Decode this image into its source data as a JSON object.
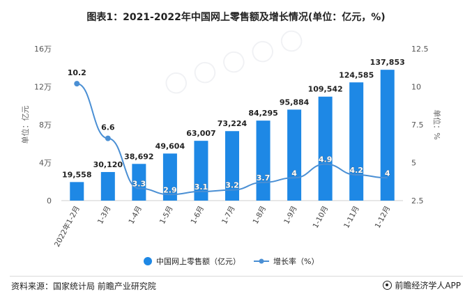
{
  "title": "图表1：2021-2022年中国网上零售额及增长情况(单位：亿元，%)",
  "footer": {
    "source": "资料来源：国家统计局 前瞻产业研究院",
    "brand": "前瞻经济学人APP"
  },
  "colors": {
    "bar": "#1e88e5",
    "line": "#4a8fd4"
  },
  "chart_data": {
    "type": "bar",
    "categories": [
      "2022年1-2月",
      "1-3月",
      "1-4月",
      "1-5月",
      "1-6月",
      "1-7月",
      "1-8月",
      "1-9月",
      "1-10月",
      "1-11月",
      "1-12月"
    ],
    "series": [
      {
        "name": "中国网上零售额（亿元）",
        "type": "bar",
        "axis": "left",
        "values": [
          19558,
          30120,
          38692,
          49604,
          63007,
          73224,
          84295,
          95884,
          109542,
          124585,
          137853
        ],
        "labels": [
          "19,558",
          "30,120",
          "38,692",
          "49,604",
          "63,007",
          "73,224",
          "84,295",
          "95,884",
          "109,542",
          "124,585",
          "137,853"
        ]
      },
      {
        "name": "增长率（%）",
        "type": "line",
        "axis": "right",
        "values": [
          10.2,
          6.6,
          3.3,
          2.9,
          3.1,
          3.2,
          3.7,
          4,
          4.9,
          4.2,
          4
        ],
        "labels": [
          "10.2",
          "6.6",
          "3.3",
          "2.9",
          "3.1",
          "3.2",
          "3.7",
          "4",
          "4.9",
          "4.2",
          "4"
        ]
      }
    ],
    "y_left": {
      "label": "单位：亿元",
      "min": 0,
      "max": 160000,
      "ticks": [
        0,
        40000,
        80000,
        120000,
        160000
      ],
      "tick_labels": [
        "0",
        "4万",
        "8万",
        "12万",
        "16万"
      ]
    },
    "y_right": {
      "label": "单位：%",
      "min": 2.5,
      "max": 12.5,
      "ticks": [
        2.5,
        5,
        7.5,
        10,
        12.5
      ],
      "tick_labels": [
        "2.5",
        "5",
        "7.5",
        "10",
        "12.5"
      ]
    },
    "grid": false,
    "legend": "bottom"
  }
}
